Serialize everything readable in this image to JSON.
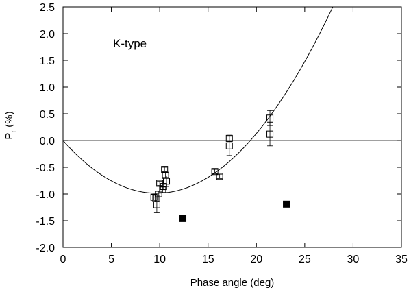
{
  "chart_data": {
    "type": "scatter",
    "title": "",
    "annotation": "K-type",
    "xlabel": "Phase angle (deg)",
    "ylabel_main": "P",
    "ylabel_sub": "r",
    "ylabel_unit": " (%)",
    "xlim": [
      0,
      35
    ],
    "ylim": [
      -2.0,
      2.5
    ],
    "x_ticks": [
      0,
      5,
      10,
      15,
      20,
      25,
      30,
      35
    ],
    "x_tick_labels": [
      "0",
      "5",
      "10",
      "15",
      "20",
      "25",
      "30",
      "35"
    ],
    "y_ticks": [
      2.5,
      2.0,
      1.5,
      1.0,
      0.5,
      0.0,
      -0.5,
      -1.0,
      -1.5,
      -2.0
    ],
    "y_tick_labels": [
      "2.5",
      "2.0",
      "1.5",
      "1.0",
      "0.5",
      "0.0",
      "-0.5",
      "-1.0",
      "-1.5",
      "-2.0"
    ],
    "reference_line_y": 0,
    "series": [
      {
        "name": "open squares",
        "marker": "open-square",
        "points": [
          {
            "x": 9.4,
            "y": -1.06,
            "err": 0.05
          },
          {
            "x": 9.6,
            "y": -1.08,
            "err": 0.06
          },
          {
            "x": 9.7,
            "y": -1.2,
            "err": 0.14
          },
          {
            "x": 9.9,
            "y": -1.0,
            "err": 0.05
          },
          {
            "x": 10.0,
            "y": -0.8,
            "err": 0.04
          },
          {
            "x": 10.3,
            "y": -0.92,
            "err": 0.05
          },
          {
            "x": 10.4,
            "y": -0.86,
            "err": 0.05
          },
          {
            "x": 10.5,
            "y": -0.54,
            "err": 0.04
          },
          {
            "x": 10.6,
            "y": -0.65,
            "err": 0.04
          },
          {
            "x": 10.7,
            "y": -0.76,
            "err": 0.1
          },
          {
            "x": 15.7,
            "y": -0.58,
            "err": 0.04
          },
          {
            "x": 16.2,
            "y": -0.67,
            "err": 0.04
          },
          {
            "x": 17.2,
            "y": 0.04,
            "err": 0.06
          },
          {
            "x": 17.2,
            "y": -0.1,
            "err": 0.18
          },
          {
            "x": 21.4,
            "y": 0.42,
            "err": 0.14
          },
          {
            "x": 21.4,
            "y": 0.12,
            "err": 0.22
          }
        ]
      },
      {
        "name": "filled squares",
        "marker": "filled-square",
        "points": [
          {
            "x": 12.4,
            "y": -1.46
          },
          {
            "x": 23.1,
            "y": -1.19
          }
        ]
      }
    ],
    "fit_curve": {
      "type": "quadratic-through-origin",
      "description": "P = a*x^2 + b*x",
      "a": 0.0105,
      "b": -0.2034,
      "x_range": [
        0,
        35
      ]
    },
    "colors": {
      "axis": "#000000",
      "marker": "#000000",
      "background": "#ffffff"
    }
  }
}
